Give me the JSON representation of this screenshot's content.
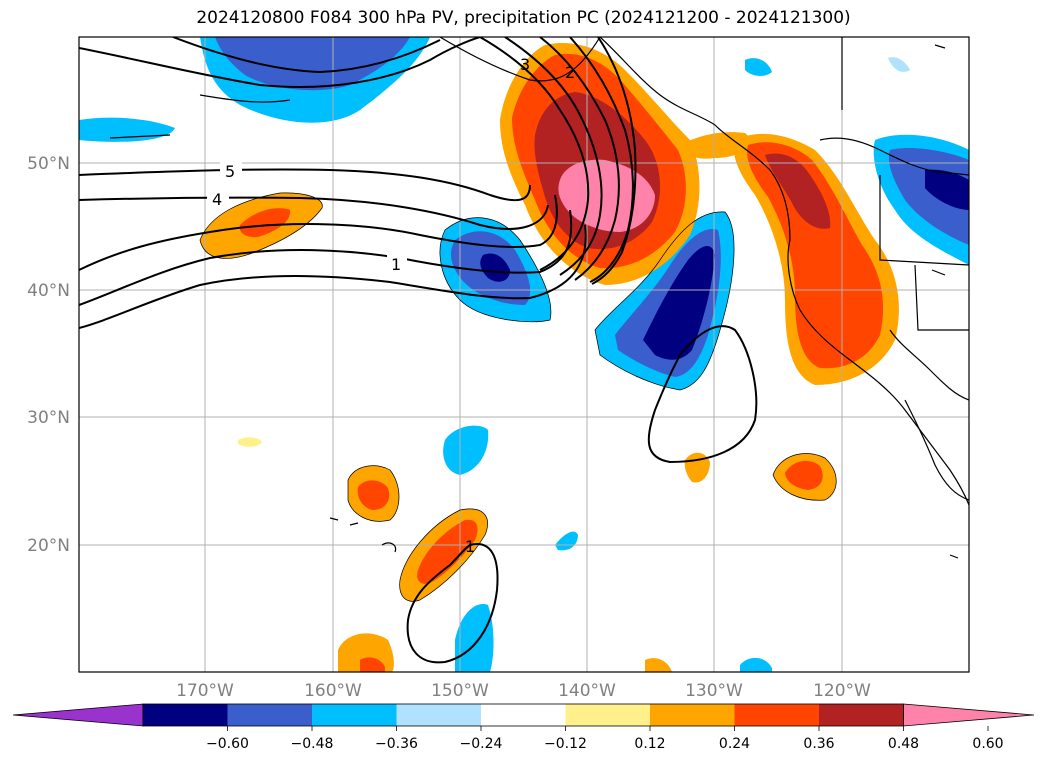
{
  "title": "2024120800 F084 300 hPa PV, precipitation PC (2024121200 - 2024121300)",
  "map": {
    "lat_ticks": [
      "50°N",
      "40°N",
      "30°N",
      "20°N"
    ],
    "lon_ticks": [
      "170°W",
      "160°W",
      "150°W",
      "140°W",
      "130°W",
      "120°W"
    ],
    "pv_contour_labels": [
      "5",
      "4",
      "1",
      "3",
      "2",
      "1"
    ]
  },
  "colorbar": {
    "ticks": [
      "−0.60",
      "−0.48",
      "−0.36",
      "−0.24",
      "−0.12",
      "0.12",
      "0.24",
      "0.36",
      "0.48",
      "0.60"
    ],
    "colors": [
      "#9a32cd",
      "#000080",
      "#3a5fcd",
      "#00bfff",
      "#b0e2ff",
      "#ffffff",
      "#fff08c",
      "#ffa500",
      "#ff4500",
      "#b22222",
      "#ff82ab"
    ]
  }
}
